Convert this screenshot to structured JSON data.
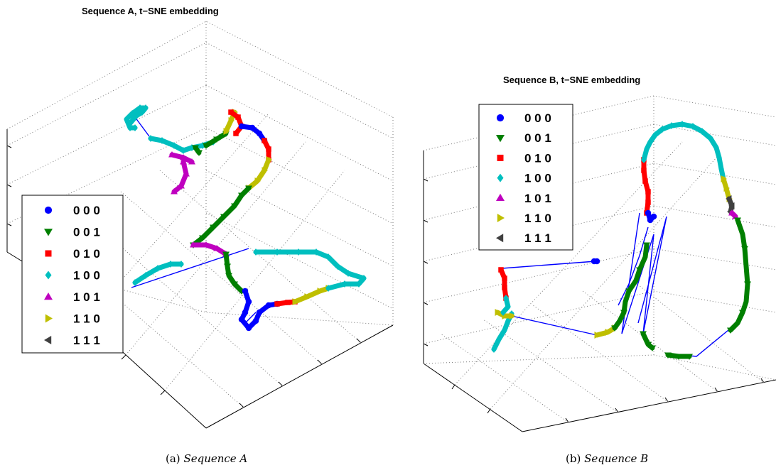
{
  "colors": {
    "000": "#0000ff",
    "001": "#007f00",
    "010": "#ff0000",
    "100": "#00bfbf",
    "101": "#bf00bf",
    "110": "#bfbf00",
    "111": "#404040",
    "connector": "#0000ff"
  },
  "chart_data": [
    {
      "type": "scatter",
      "title": "Sequence A,  t−SNE embedding",
      "caption_prefix": "(a)",
      "caption_label": "Sequence A",
      "legend_location": "left",
      "grid": true,
      "legend": [
        {
          "label": "0 0 0",
          "key": "000",
          "marker": "circle"
        },
        {
          "label": "0 0 1",
          "key": "001",
          "marker": "triangle-down"
        },
        {
          "label": "0 1 0",
          "key": "010",
          "marker": "square"
        },
        {
          "label": "1 0 0",
          "key": "100",
          "marker": "diamond"
        },
        {
          "label": "1 0 1",
          "key": "101",
          "marker": "triangle-up"
        },
        {
          "label": "1 1 0",
          "key": "110",
          "marker": "triangle-right"
        },
        {
          "label": "1 1 1",
          "key": "111",
          "marker": "triangle-left"
        }
      ]
    },
    {
      "type": "scatter",
      "title": "Sequence B,  t−SNE embedding",
      "caption_prefix": "(b)",
      "caption_label": "Sequence B",
      "legend_location": "top-left",
      "grid": true,
      "legend": [
        {
          "label": "0 0 0",
          "key": "000",
          "marker": "circle"
        },
        {
          "label": "0 0 1",
          "key": "001",
          "marker": "triangle-down"
        },
        {
          "label": "0 1 0",
          "key": "010",
          "marker": "square"
        },
        {
          "label": "1 0 0",
          "key": "100",
          "marker": "diamond"
        },
        {
          "label": "1 0 1",
          "key": "101",
          "marker": "triangle-up"
        },
        {
          "label": "1 1 0",
          "key": "110",
          "marker": "triangle-right"
        },
        {
          "label": "1 1 1",
          "key": "111",
          "marker": "triangle-left"
        }
      ]
    }
  ]
}
